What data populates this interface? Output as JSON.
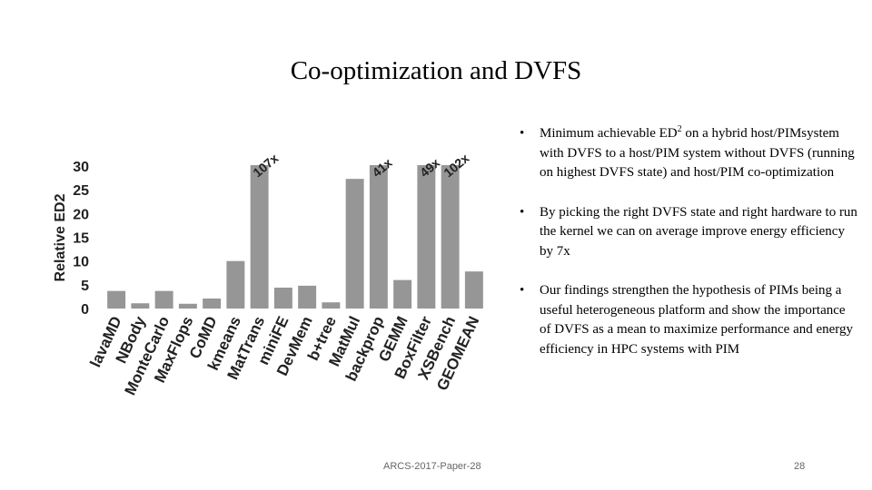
{
  "slide": {
    "title": "Co-optimization and DVFS",
    "bullets": [
      [
        "Minimum achievable ED",
        "2",
        " on a hybrid host/PIMsystem with DVFS to a host/PIM system without DVFS (running on highest DVFS state) and host/PIM co-optimization"
      ],
      [
        "By picking the right DVFS state and right hardware to run the kernel we can on average improve energy efficiency by 7x"
      ],
      [
        "Our findings strengthen the hypothesis of PIMs being a useful heterogeneous platform and show the importance of DVFS as a mean to maximize performance and energy efficiency in HPC systems with PIM"
      ]
    ],
    "footer": "ARCS-2017-Paper-28",
    "page_number": "28"
  },
  "chart_data": {
    "type": "bar",
    "ylabel": "Relative ED2",
    "categories": [
      "lavaMD",
      "NBody",
      "MonteCarlo",
      "MaxFlops",
      "CoMD",
      "kmeans",
      "MatTrans",
      "miniFE",
      "DevMem",
      "b+tree",
      "MatMul",
      "backprop",
      "GEMM",
      "BoxFilter",
      "XSBench",
      "GEOMEAN"
    ],
    "values": [
      3.7,
      1.1,
      3.7,
      1.0,
      2.1,
      10,
      107,
      4.4,
      4.8,
      1.3,
      27.3,
      41,
      6,
      49,
      102,
      7.8
    ],
    "value_labels": [
      null,
      null,
      null,
      null,
      null,
      null,
      "107x",
      null,
      null,
      null,
      null,
      "41x",
      null,
      "49x",
      "102x",
      null
    ],
    "color": "#969696",
    "ylim": [
      0,
      30
    ],
    "yticks": [
      0,
      5,
      10,
      15,
      20,
      25,
      30
    ],
    "grid": false
  }
}
